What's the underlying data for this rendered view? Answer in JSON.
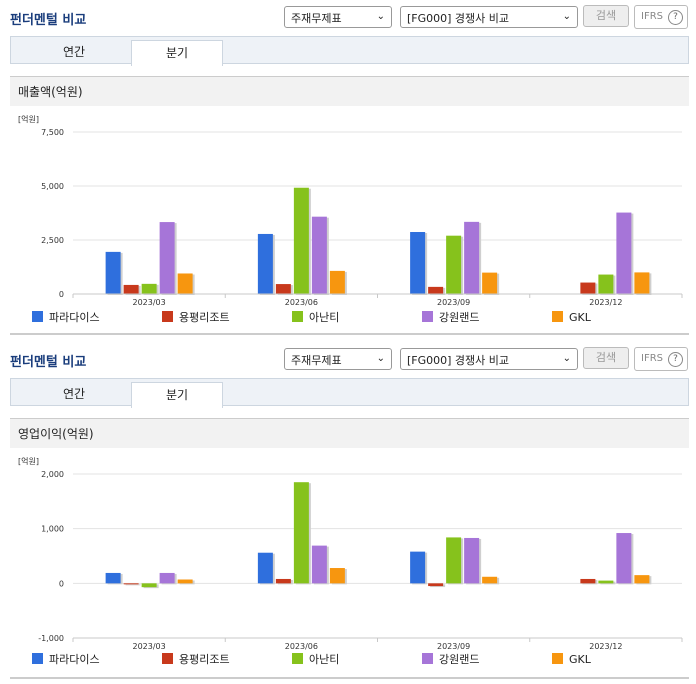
{
  "panels": [
    {
      "title": "펀더멘털 비교",
      "select1": "주재무제표",
      "select2": "[FG000] 경쟁사 비교",
      "search_label": "검색",
      "ifrs_label": "IFRS",
      "help_glyph": "?",
      "tabs": [
        "연간",
        "분기"
      ],
      "active_tab": "분기",
      "section_title": "매출액(억원)"
    },
    {
      "title": "펀더멘털 비교",
      "select1": "주재무제표",
      "select2": "[FG000] 경쟁사 비교",
      "search_label": "검색",
      "ifrs_label": "IFRS",
      "help_glyph": "?",
      "tabs": [
        "연간",
        "분기"
      ],
      "active_tab": "분기",
      "section_title": "영업이익(억원)"
    }
  ],
  "colors": [
    "#2f6fdd",
    "#c8391c",
    "#86c21c",
    "#a675d8",
    "#f7960f"
  ],
  "chart_data": [
    {
      "type": "bar",
      "unit_label": "[억원]",
      "categories": [
        "2023/03",
        "2023/06",
        "2023/09",
        "2023/12"
      ],
      "ylim": [
        0,
        7500
      ],
      "yticks": [
        0,
        2500,
        5000,
        7500
      ],
      "ytick_labels": [
        "0",
        "2,500",
        "5,000",
        "7,500"
      ],
      "grid": true,
      "legend": "bottom",
      "series": [
        {
          "name": "파라다이스",
          "values": [
            1950,
            2780,
            2870,
            null
          ]
        },
        {
          "name": "용평리조트",
          "values": [
            420,
            460,
            330,
            530
          ]
        },
        {
          "name": "아난티",
          "values": [
            470,
            4920,
            2700,
            900
          ]
        },
        {
          "name": "강원랜드",
          "values": [
            3330,
            3580,
            3340,
            3770
          ]
        },
        {
          "name": "GKL",
          "values": [
            950,
            1070,
            990,
            1000
          ]
        }
      ]
    },
    {
      "type": "bar",
      "unit_label": "[억원]",
      "categories": [
        "2023/03",
        "2023/06",
        "2023/09",
        "2023/12"
      ],
      "ylim": [
        -1000,
        2000
      ],
      "yticks": [
        -1000,
        0,
        1000,
        2000
      ],
      "ytick_labels": [
        "-1,000",
        "0",
        "1,000",
        "2,000"
      ],
      "grid": true,
      "legend": "bottom",
      "series": [
        {
          "name": "파라다이스",
          "values": [
            190,
            560,
            580,
            null
          ]
        },
        {
          "name": "용평리조트",
          "values": [
            -10,
            80,
            -50,
            80
          ]
        },
        {
          "name": "아난티",
          "values": [
            -70,
            1850,
            840,
            50
          ]
        },
        {
          "name": "강원랜드",
          "values": [
            190,
            690,
            830,
            920
          ]
        },
        {
          "name": "GKL",
          "values": [
            70,
            280,
            120,
            150
          ]
        }
      ]
    }
  ]
}
